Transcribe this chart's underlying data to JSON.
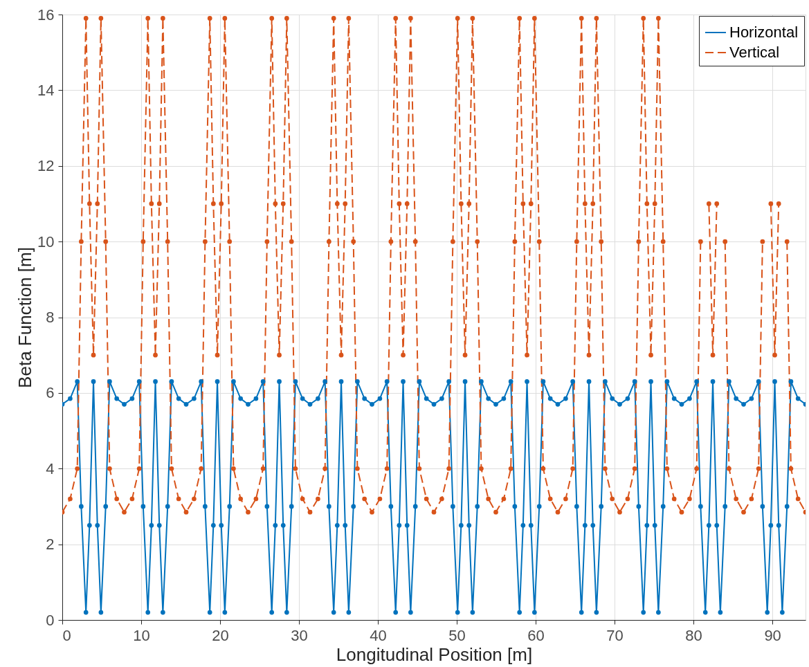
{
  "chart_data": {
    "type": "line",
    "xlabel": "Longitudinal Position [m]",
    "ylabel": "Beta Function [m]",
    "x": [
      0,
      1,
      1.9,
      2.4,
      3,
      3.45,
      3.95,
      4.45,
      4.9,
      5.5,
      6,
      6.9,
      7.85,
      8.85,
      9.75,
      10.25,
      10.85,
      11.3,
      11.8,
      12.3,
      12.75,
      13.35,
      13.85,
      14.75,
      15.7,
      16.7,
      17.6,
      18.1,
      18.7,
      19.15,
      19.65,
      20.15,
      20.6,
      21.2,
      21.7,
      22.6,
      23.55,
      24.55,
      25.45,
      25.95,
      26.55,
      27,
      27.5,
      28,
      28.45,
      29.05,
      29.55,
      30.45,
      31.4,
      32.4,
      33.3,
      33.8,
      34.4,
      34.85,
      35.35,
      35.85,
      36.3,
      36.9,
      37.4,
      38.3,
      39.25,
      40.25,
      41.15,
      41.65,
      42.25,
      42.7,
      43.2,
      43.7,
      44.15,
      44.75,
      45.25,
      46.15,
      47.1,
      48.1,
      49,
      49.5,
      50.1,
      50.55,
      51.05,
      51.55,
      52,
      52.6,
      53.1,
      54,
      54.95,
      55.95,
      56.85,
      57.35,
      57.95,
      58.4,
      58.9,
      59.4,
      59.85,
      60.45,
      60.95,
      61.85,
      62.8,
      63.8,
      64.7,
      65.2,
      65.8,
      66.25,
      66.75,
      67.25,
      67.7,
      68.3,
      68.8,
      69.7,
      70.65,
      71.65,
      72.55,
      73.05,
      73.65,
      74.1,
      74.6,
      75.1,
      75.55,
      76.15,
      76.65,
      77.55,
      78.5,
      79.5,
      80.4,
      80.9,
      81.5,
      81.95,
      82.45,
      82.95,
      83.4,
      84,
      84.5,
      85.4,
      86.35,
      87.35,
      88.25,
      88.75,
      89.35,
      89.8,
      90.3,
      90.8,
      91.25,
      91.85,
      92.35,
      93.25,
      94.2
    ],
    "series": [
      {
        "name": "Horizontal",
        "color": "#0072bd",
        "line_style": "solid",
        "values": [
          5.7,
          5.85,
          6.3,
          3.0,
          0.2,
          2.5,
          6.3,
          2.5,
          0.2,
          3.0,
          6.3,
          5.85,
          5.7,
          5.85,
          6.3,
          3.0,
          0.2,
          2.5,
          6.3,
          2.5,
          0.2,
          3.0,
          6.3,
          5.85,
          5.7,
          5.85,
          6.3,
          3.0,
          0.2,
          2.5,
          6.3,
          2.5,
          0.2,
          3.0,
          6.3,
          5.85,
          5.7,
          5.85,
          6.3,
          3.0,
          0.2,
          2.5,
          6.3,
          2.5,
          0.2,
          3.0,
          6.3,
          5.85,
          5.7,
          5.85,
          6.3,
          3.0,
          0.2,
          2.5,
          6.3,
          2.5,
          0.2,
          3.0,
          6.3,
          5.85,
          5.7,
          5.85,
          6.3,
          3.0,
          0.2,
          2.5,
          6.3,
          2.5,
          0.2,
          3.0,
          6.3,
          5.85,
          5.7,
          5.85,
          6.3,
          3.0,
          0.2,
          2.5,
          6.3,
          2.5,
          0.2,
          3.0,
          6.3,
          5.85,
          5.7,
          5.85,
          6.3,
          3.0,
          0.2,
          2.5,
          6.3,
          2.5,
          0.2,
          3.0,
          6.3,
          5.85,
          5.7,
          5.85,
          6.3,
          3.0,
          0.2,
          2.5,
          6.3,
          2.5,
          0.2,
          3.0,
          6.3,
          5.85,
          5.7,
          5.85,
          6.3,
          3.0,
          0.2,
          2.5,
          6.3,
          2.5,
          0.2,
          3.0,
          6.3,
          5.85,
          5.7,
          5.85,
          6.3,
          3.0,
          0.2,
          2.5,
          6.3,
          2.5,
          0.2,
          3.0,
          6.3,
          5.85,
          5.7,
          5.85,
          6.3,
          3.0,
          0.2,
          2.5,
          6.3,
          2.5,
          0.2,
          3.0,
          6.3,
          5.85,
          5.7
        ]
      },
      {
        "name": "Vertical",
        "color": "#d95319",
        "line_style": "dashed",
        "values": [
          2.85,
          3.2,
          4.0,
          10,
          15.9,
          11,
          7.0,
          11,
          15.9,
          10,
          4.0,
          3.2,
          2.85,
          3.2,
          4.0,
          10,
          15.9,
          11,
          7.0,
          11,
          15.9,
          10,
          4.0,
          3.2,
          2.85,
          3.2,
          4.0,
          10,
          15.9,
          11,
          7.0,
          11,
          15.9,
          10,
          4.0,
          3.2,
          2.85,
          3.2,
          4.0,
          10,
          15.9,
          11,
          7.0,
          11,
          15.9,
          10,
          4.0,
          3.2,
          2.85,
          3.2,
          4.0,
          10,
          15.9,
          11,
          7.0,
          11,
          15.9,
          10,
          4.0,
          3.2,
          2.85,
          3.2,
          4.0,
          10,
          15.9,
          11,
          7.0,
          11,
          15.9,
          10,
          4.0,
          3.2,
          2.85,
          3.2,
          4.0,
          10,
          15.9,
          11,
          7.0,
          11,
          15.9,
          10,
          4.0,
          3.2,
          2.85,
          3.2,
          4.0,
          10,
          15.9,
          11,
          7.0,
          11,
          15.9,
          10,
          4.0,
          3.2,
          2.85,
          3.2,
          4.0,
          10,
          15.9,
          11,
          7.0,
          11,
          15.9,
          10,
          4.0,
          3.2,
          2.85,
          3.2,
          4.0,
          10,
          15.9,
          11,
          7.0,
          11,
          15.9,
          10,
          4.0,
          3.2,
          2.85,
          3.2,
          4.0,
          10,
          null,
          11,
          7.0,
          11,
          null,
          10,
          4.0,
          3.2,
          2.85,
          3.2,
          4.0,
          10,
          null,
          11,
          7.0,
          11,
          null,
          10,
          4.0,
          3.2,
          2.85
        ]
      }
    ],
    "xlim": [
      0,
      94.2
    ],
    "xticks": [
      0,
      10,
      20,
      30,
      40,
      50,
      60,
      70,
      80,
      90
    ],
    "ylim": [
      0,
      16
    ],
    "yticks": [
      0,
      2,
      4,
      6,
      8,
      10,
      12,
      14,
      16
    ],
    "grid": true,
    "legend": "top right",
    "marker": "circle"
  }
}
